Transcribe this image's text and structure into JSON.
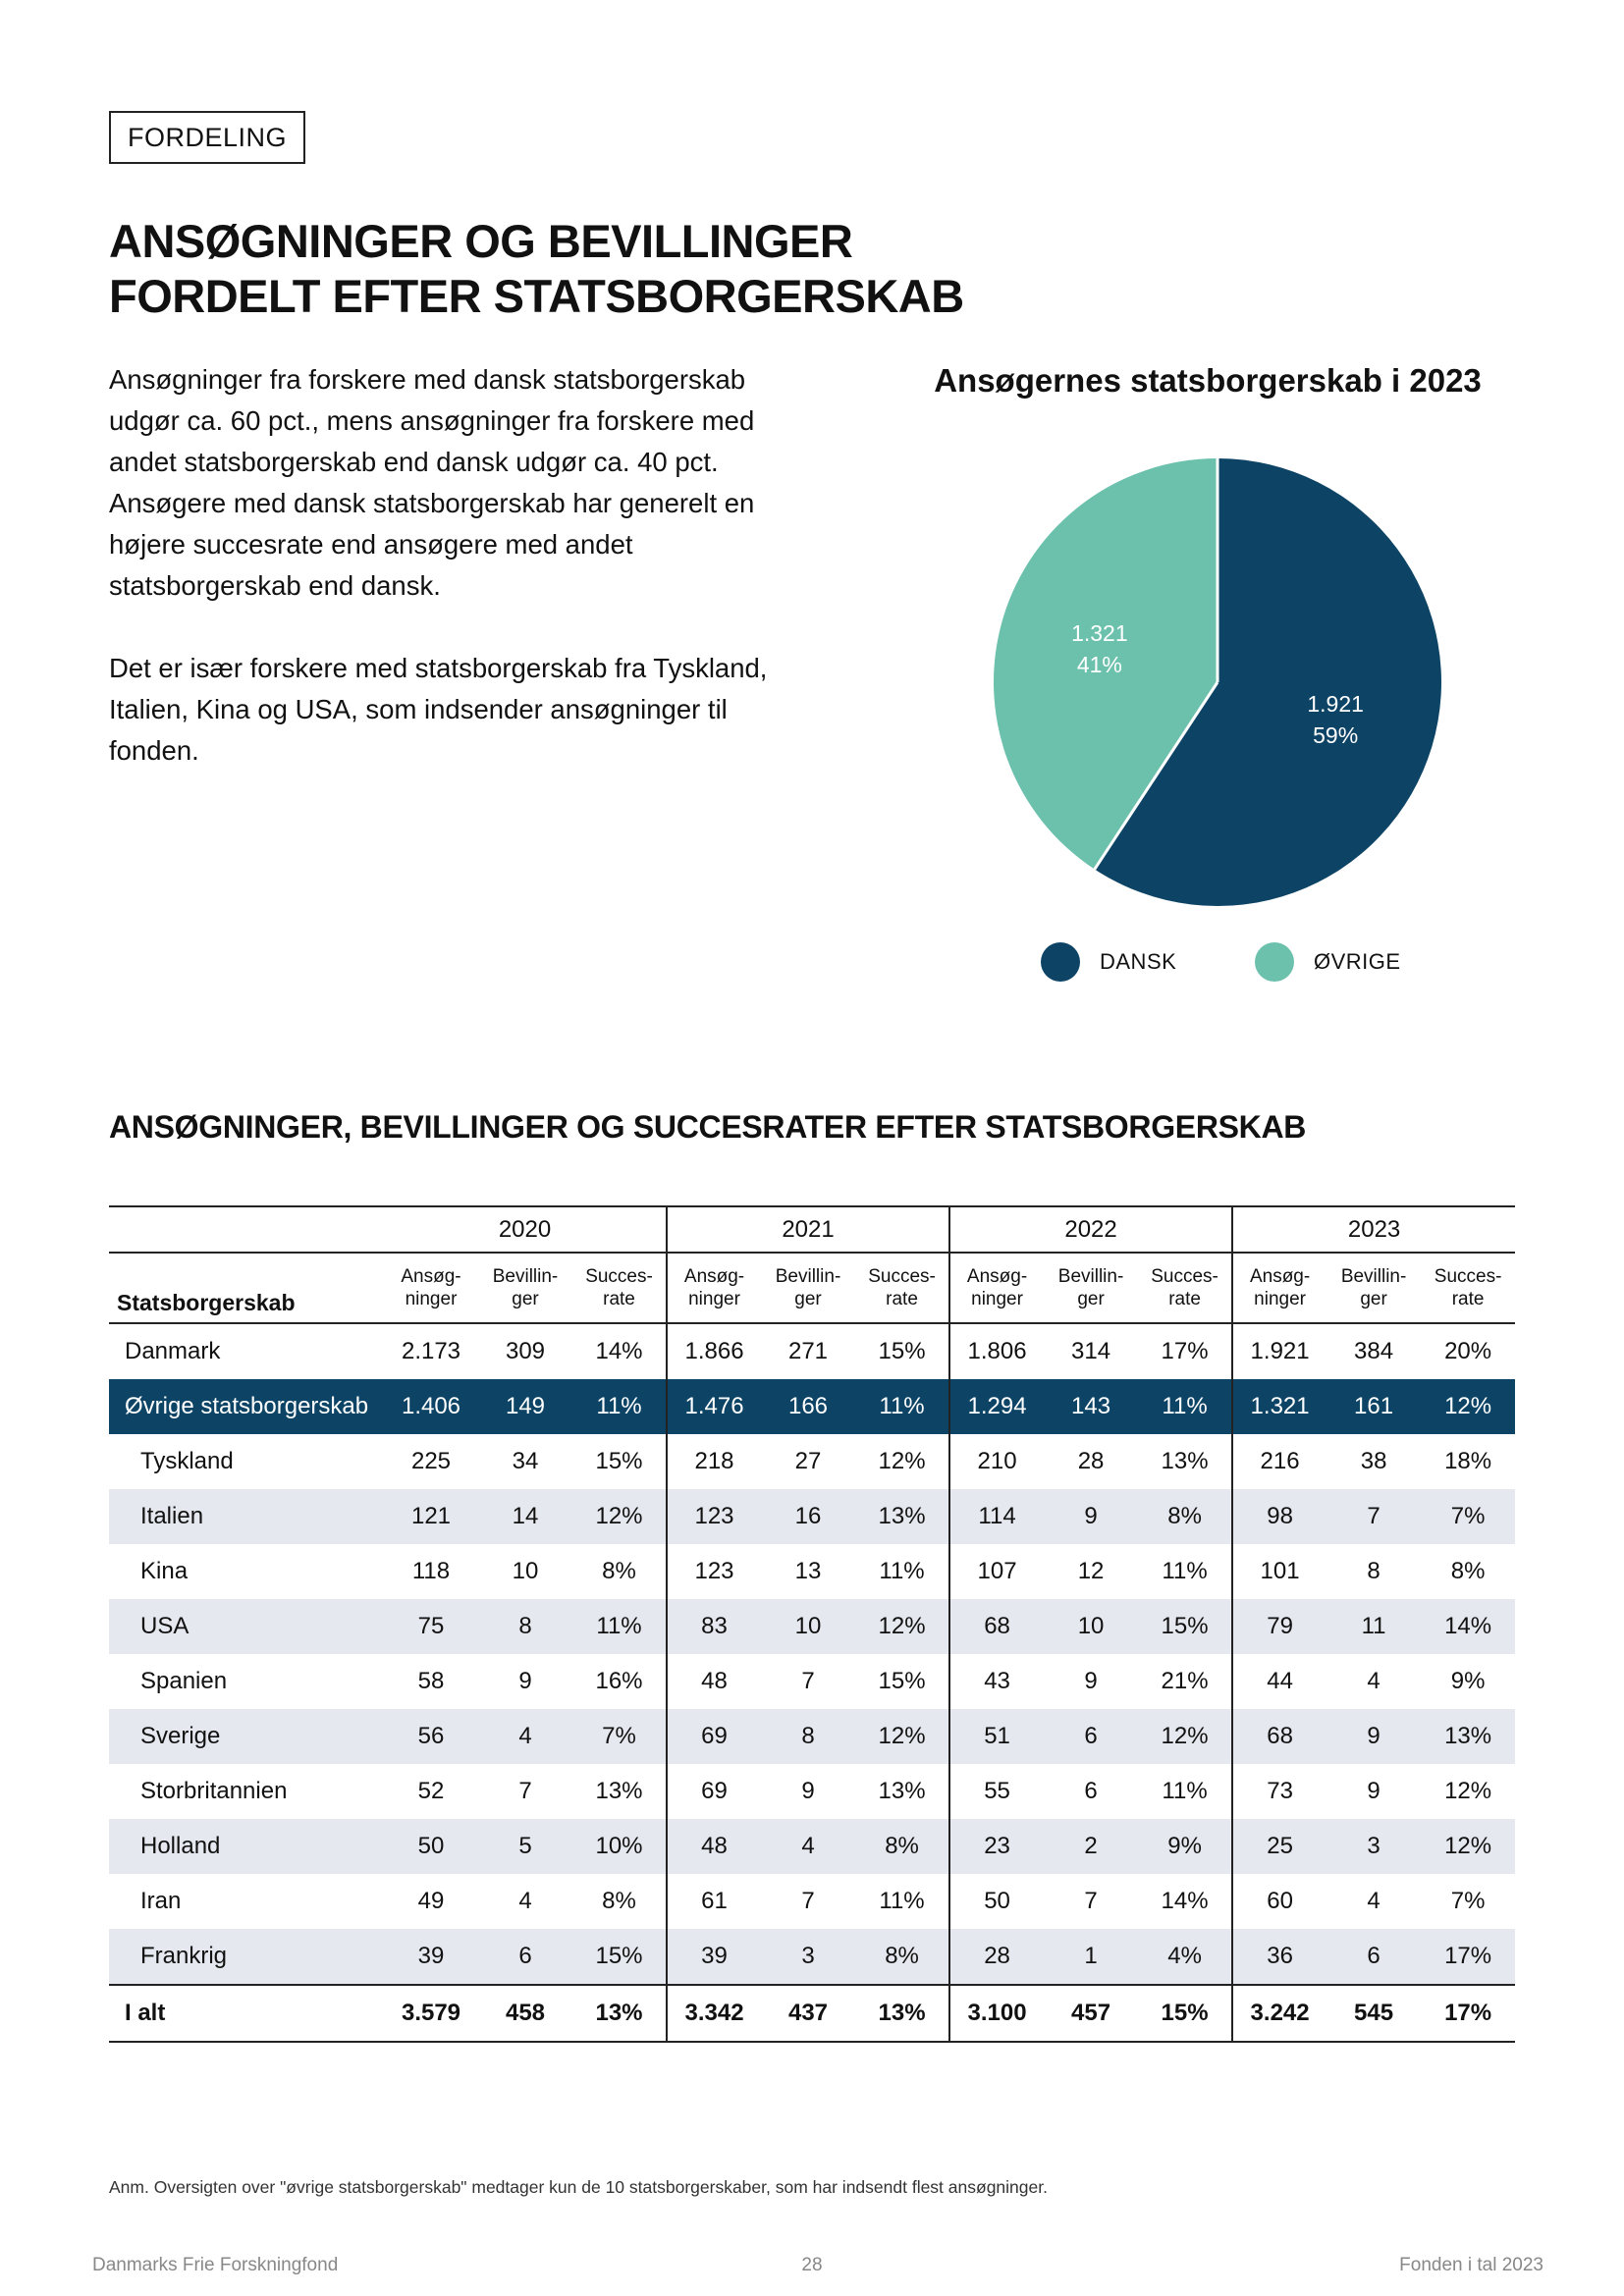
{
  "section_tag": "FORDELING",
  "title_lines": [
    "ANSØGNINGER OG BEVILLINGER",
    "FORDELT EFTER STATSBORGERSKAB"
  ],
  "intro": {
    "paragraph1": "Ansøgninger fra forskere med dansk statsborgerskab udgør ca. 60 pct., mens ansøgninger fra forskere med andet statsborgerskab end dansk udgør ca. 40 pct. Ansøgere med dansk statsborgerskab har generelt en højere succesrate end ansøgere med andet statsborgerskab end dansk.",
    "paragraph2": "Det er især forskere med statsborgerskab fra Tyskland, Italien, Kina og USA, som indsender ansøgninger til fonden."
  },
  "chart_data": {
    "type": "pie",
    "title": "Ansøgernes statsborgerskab i 2023",
    "slices": [
      {
        "label": "DANSK",
        "value": 1921,
        "value_label": "1.921",
        "pct_label": "59%",
        "color": "#0d4466"
      },
      {
        "label": "ØVRIGE",
        "value": 1321,
        "value_label": "1.321",
        "pct_label": "41%",
        "color": "#6cc1ad"
      }
    ],
    "legend": [
      "DANSK",
      "ØVRIGE"
    ],
    "legend_placement": "bottom"
  },
  "table": {
    "heading": "ANSØGNINGER, BEVILLINGER OG SUCCESRATER EFTER STATSBORGERSKAB",
    "years": [
      "2020",
      "2021",
      "2022",
      "2023"
    ],
    "row_header": "Statsborgerskab",
    "sub_headers": [
      [
        "Ansøg-",
        "ninger"
      ],
      [
        "Bevillin-",
        "ger"
      ],
      [
        "Succes-",
        "rate"
      ]
    ],
    "rows": [
      {
        "name": "Danmark",
        "values": [
          "2.173",
          "309",
          "14%",
          "1.866",
          "271",
          "15%",
          "1.806",
          "314",
          "17%",
          "1.921",
          "384",
          "20%"
        ]
      },
      {
        "name": "Øvrige statsborgerskab",
        "values": [
          "1.406",
          "149",
          "11%",
          "1.476",
          "166",
          "11%",
          "1.294",
          "143",
          "11%",
          "1.321",
          "161",
          "12%"
        ]
      },
      {
        "name": "Tyskland",
        "values": [
          "225",
          "34",
          "15%",
          "218",
          "27",
          "12%",
          "210",
          "28",
          "13%",
          "216",
          "38",
          "18%"
        ]
      },
      {
        "name": "Italien",
        "values": [
          "121",
          "14",
          "12%",
          "123",
          "16",
          "13%",
          "114",
          "9",
          "8%",
          "98",
          "7",
          "7%"
        ]
      },
      {
        "name": "Kina",
        "values": [
          "118",
          "10",
          "8%",
          "123",
          "13",
          "11%",
          "107",
          "12",
          "11%",
          "101",
          "8",
          "8%"
        ]
      },
      {
        "name": "USA",
        "values": [
          "75",
          "8",
          "11%",
          "83",
          "10",
          "12%",
          "68",
          "10",
          "15%",
          "79",
          "11",
          "14%"
        ]
      },
      {
        "name": "Spanien",
        "values": [
          "58",
          "9",
          "16%",
          "48",
          "7",
          "15%",
          "43",
          "9",
          "21%",
          "44",
          "4",
          "9%"
        ]
      },
      {
        "name": "Sverige",
        "values": [
          "56",
          "4",
          "7%",
          "69",
          "8",
          "12%",
          "51",
          "6",
          "12%",
          "68",
          "9",
          "13%"
        ]
      },
      {
        "name": "Storbritannien",
        "values": [
          "52",
          "7",
          "13%",
          "69",
          "9",
          "13%",
          "55",
          "6",
          "11%",
          "73",
          "9",
          "12%"
        ]
      },
      {
        "name": "Holland",
        "values": [
          "50",
          "5",
          "10%",
          "48",
          "4",
          "8%",
          "23",
          "2",
          "9%",
          "25",
          "3",
          "12%"
        ]
      },
      {
        "name": "Iran",
        "values": [
          "49",
          "4",
          "8%",
          "61",
          "7",
          "11%",
          "50",
          "7",
          "14%",
          "60",
          "4",
          "7%"
        ]
      },
      {
        "name": "Frankrig",
        "values": [
          "39",
          "6",
          "15%",
          "39",
          "3",
          "8%",
          "28",
          "1",
          "4%",
          "36",
          "6",
          "17%"
        ]
      },
      {
        "name": "I alt",
        "values": [
          "3.579",
          "458",
          "13%",
          "3.342",
          "437",
          "13%",
          "3.100",
          "457",
          "15%",
          "3.242",
          "545",
          "17%"
        ]
      }
    ]
  },
  "footnote": "Anm. Oversigten over \"øvrige statsborgerskab\" medtager kun de 10 statsborgerskaber, som har indsendt flest ansøgninger.",
  "footer": {
    "left": "Danmarks Frie Forskningfond",
    "page_number": "28",
    "right": "Fonden i tal 2023"
  }
}
